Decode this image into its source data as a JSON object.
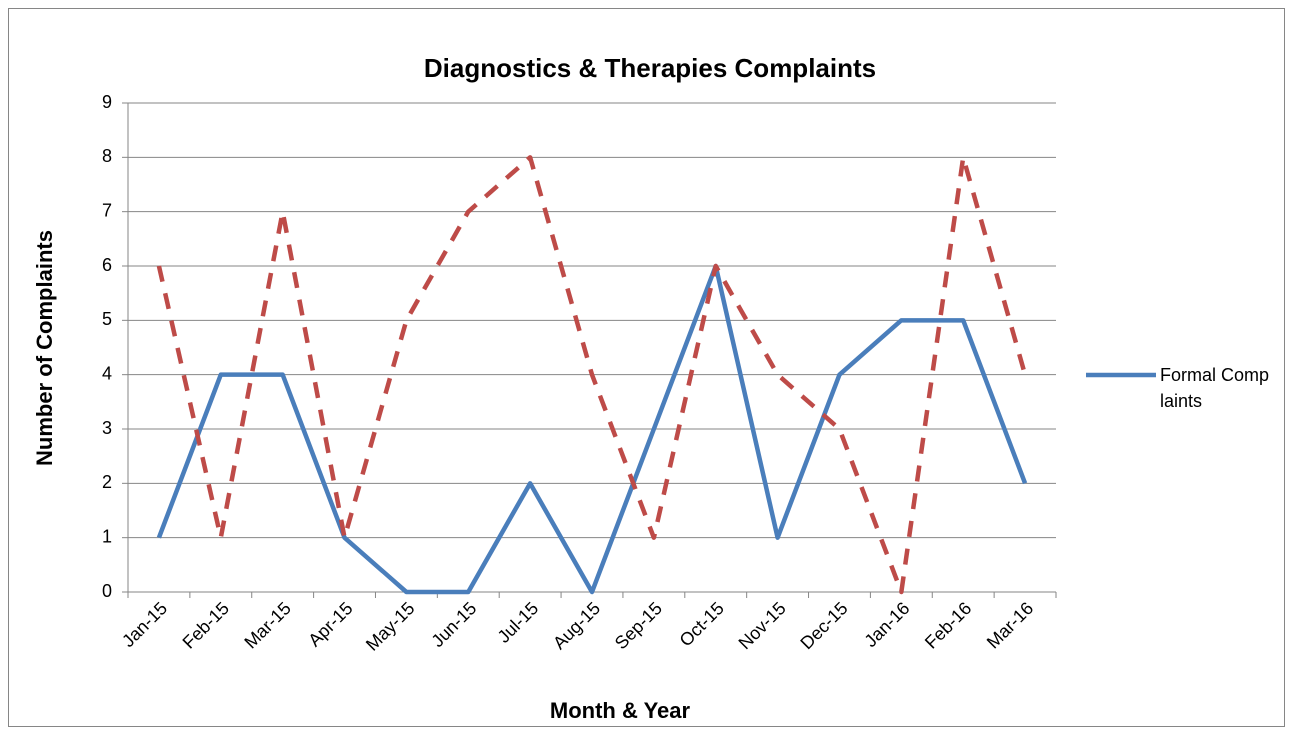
{
  "chart_data": {
    "type": "line",
    "title": "Diagnostics & Therapies Complaints",
    "x_label": "Month & Year",
    "y_label": "Number of Complaints",
    "categories": [
      "Jan-15",
      "Feb-15",
      "Mar-15",
      "Apr-15",
      "May-15",
      "Jun-15",
      "Jul-15",
      "Aug-15",
      "Sep-15",
      "Oct-15",
      "Nov-15",
      "Dec-15",
      "Jan-16",
      "Feb-16",
      "Mar-16"
    ],
    "series": [
      {
        "name": "Formal Complaints",
        "color": "#4a7ebb",
        "line_style": "solid",
        "values": [
          1,
          4,
          4,
          1,
          0,
          0,
          2,
          0,
          3,
          6,
          1,
          4,
          5,
          5,
          2
        ]
      },
      {
        "color": "#be4b48",
        "line_style": "dashed",
        "values": [
          6,
          1,
          7,
          1,
          5,
          7,
          8,
          4,
          1,
          6,
          4,
          3,
          0,
          8,
          4
        ]
      }
    ],
    "ylim": [
      0,
      9
    ],
    "yticks": [
      0,
      1,
      2,
      3,
      4,
      5,
      6,
      7,
      8,
      9
    ],
    "grid": true,
    "legend": "right"
  }
}
